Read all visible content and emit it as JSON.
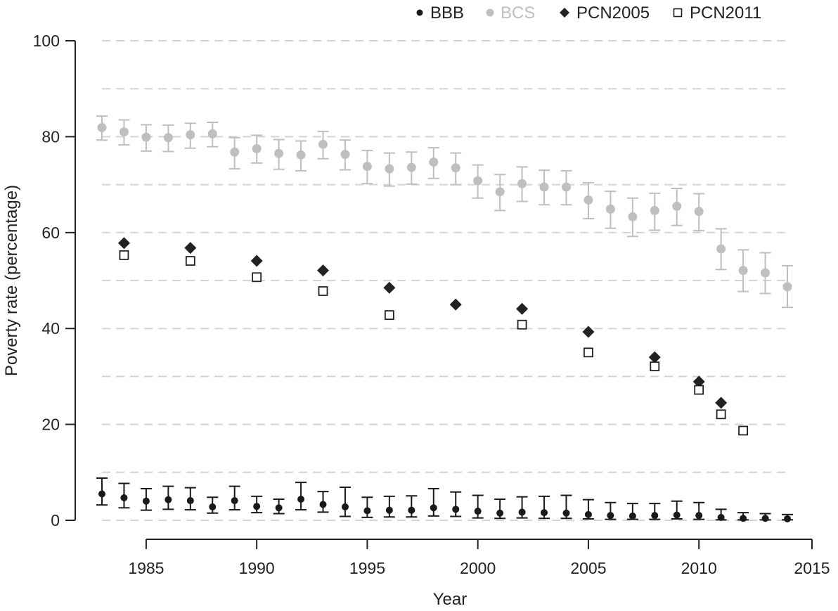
{
  "chart_data": {
    "type": "scatter",
    "xlabel": "Year",
    "ylabel": "Poverty rate (percentage)",
    "xlim": [
      1983,
      2015
    ],
    "ylim": [
      0,
      100
    ],
    "x_ticks": [
      1985,
      1990,
      1995,
      2000,
      2005,
      2010,
      2015
    ],
    "y_ticks": [
      0,
      20,
      40,
      60,
      80,
      100
    ],
    "grid": "horizontal dashed every 10",
    "legend_position": "top",
    "series": [
      {
        "name": "BBB",
        "color": "#1a1a1a",
        "marker": "circle-small",
        "error_bars": true,
        "points": [
          {
            "x": 1983,
            "y": 5.5,
            "lo": 3.2,
            "hi": 8.8
          },
          {
            "x": 1984,
            "y": 4.7,
            "lo": 2.6,
            "hi": 7.7
          },
          {
            "x": 1985,
            "y": 4.0,
            "lo": 2.1,
            "hi": 6.6
          },
          {
            "x": 1986,
            "y": 4.3,
            "lo": 2.3,
            "hi": 7.1
          },
          {
            "x": 1987,
            "y": 4.1,
            "lo": 2.2,
            "hi": 6.8
          },
          {
            "x": 1988,
            "y": 2.8,
            "lo": 1.5,
            "hi": 4.8
          },
          {
            "x": 1989,
            "y": 4.1,
            "lo": 2.2,
            "hi": 7.1
          },
          {
            "x": 1990,
            "y": 2.9,
            "lo": 1.6,
            "hi": 5.0
          },
          {
            "x": 1991,
            "y": 2.6,
            "lo": 1.4,
            "hi": 4.4
          },
          {
            "x": 1992,
            "y": 4.4,
            "lo": 2.2,
            "hi": 7.9
          },
          {
            "x": 1993,
            "y": 3.3,
            "lo": 1.7,
            "hi": 6.0
          },
          {
            "x": 1994,
            "y": 2.8,
            "lo": 0.8,
            "hi": 6.9
          },
          {
            "x": 1995,
            "y": 2.0,
            "lo": 0.6,
            "hi": 4.8
          },
          {
            "x": 1996,
            "y": 2.1,
            "lo": 0.7,
            "hi": 5.0
          },
          {
            "x": 1997,
            "y": 2.1,
            "lo": 0.7,
            "hi": 5.1
          },
          {
            "x": 1998,
            "y": 2.6,
            "lo": 0.9,
            "hi": 6.6
          },
          {
            "x": 1999,
            "y": 2.3,
            "lo": 0.8,
            "hi": 5.9
          },
          {
            "x": 2000,
            "y": 1.9,
            "lo": 0.5,
            "hi": 5.2
          },
          {
            "x": 2001,
            "y": 1.5,
            "lo": 0.4,
            "hi": 4.4
          },
          {
            "x": 2002,
            "y": 1.7,
            "lo": 0.5,
            "hi": 4.9
          },
          {
            "x": 2003,
            "y": 1.6,
            "lo": 0.4,
            "hi": 5.0
          },
          {
            "x": 2004,
            "y": 1.5,
            "lo": 0.4,
            "hi": 5.2
          },
          {
            "x": 2005,
            "y": 1.2,
            "lo": 0.3,
            "hi": 4.3
          },
          {
            "x": 2006,
            "y": 1.0,
            "lo": 0.2,
            "hi": 3.7
          },
          {
            "x": 2007,
            "y": 0.9,
            "lo": 0.2,
            "hi": 3.5
          },
          {
            "x": 2008,
            "y": 1.0,
            "lo": 0.2,
            "hi": 3.5
          },
          {
            "x": 2009,
            "y": 1.1,
            "lo": 0.3,
            "hi": 4.0
          },
          {
            "x": 2010,
            "y": 1.0,
            "lo": 0.2,
            "hi": 3.7
          },
          {
            "x": 2011,
            "y": 0.6,
            "lo": 0.1,
            "hi": 2.3
          },
          {
            "x": 2012,
            "y": 0.4,
            "lo": 0.1,
            "hi": 1.6
          },
          {
            "x": 2013,
            "y": 0.4,
            "lo": 0.1,
            "hi": 1.4
          },
          {
            "x": 2014,
            "y": 0.3,
            "lo": 0.1,
            "hi": 1.2
          }
        ]
      },
      {
        "name": "BCS",
        "color": "#bfbfbf",
        "marker": "circle",
        "error_bars": true,
        "points": [
          {
            "x": 1983,
            "y": 81.9,
            "lo": 79.3,
            "hi": 84.3
          },
          {
            "x": 1984,
            "y": 81.0,
            "lo": 78.3,
            "hi": 83.5
          },
          {
            "x": 1985,
            "y": 79.9,
            "lo": 77.0,
            "hi": 82.5
          },
          {
            "x": 1986,
            "y": 79.8,
            "lo": 76.9,
            "hi": 82.4
          },
          {
            "x": 1987,
            "y": 80.4,
            "lo": 77.6,
            "hi": 82.8
          },
          {
            "x": 1988,
            "y": 80.6,
            "lo": 77.9,
            "hi": 83.0
          },
          {
            "x": 1989,
            "y": 76.8,
            "lo": 73.3,
            "hi": 79.8
          },
          {
            "x": 1990,
            "y": 77.5,
            "lo": 74.5,
            "hi": 80.3
          },
          {
            "x": 1991,
            "y": 76.5,
            "lo": 73.2,
            "hi": 79.4
          },
          {
            "x": 1992,
            "y": 76.2,
            "lo": 72.9,
            "hi": 79.1
          },
          {
            "x": 1993,
            "y": 78.4,
            "lo": 75.4,
            "hi": 81.1
          },
          {
            "x": 1994,
            "y": 76.3,
            "lo": 73.1,
            "hi": 79.3
          },
          {
            "x": 1995,
            "y": 73.8,
            "lo": 70.2,
            "hi": 77.1
          },
          {
            "x": 1996,
            "y": 73.3,
            "lo": 69.7,
            "hi": 76.6
          },
          {
            "x": 1997,
            "y": 73.6,
            "lo": 70.1,
            "hi": 76.8
          },
          {
            "x": 1998,
            "y": 74.7,
            "lo": 71.3,
            "hi": 77.7
          },
          {
            "x": 1999,
            "y": 73.5,
            "lo": 70.0,
            "hi": 76.6
          },
          {
            "x": 2000,
            "y": 70.8,
            "lo": 67.2,
            "hi": 74.1
          },
          {
            "x": 2001,
            "y": 68.5,
            "lo": 64.6,
            "hi": 72.1
          },
          {
            "x": 2002,
            "y": 70.2,
            "lo": 66.5,
            "hi": 73.7
          },
          {
            "x": 2003,
            "y": 69.5,
            "lo": 65.8,
            "hi": 73.0
          },
          {
            "x": 2004,
            "y": 69.5,
            "lo": 65.8,
            "hi": 72.9
          },
          {
            "x": 2005,
            "y": 66.8,
            "lo": 62.9,
            "hi": 70.4
          },
          {
            "x": 2006,
            "y": 64.9,
            "lo": 60.9,
            "hi": 68.6
          },
          {
            "x": 2007,
            "y": 63.3,
            "lo": 59.2,
            "hi": 67.2
          },
          {
            "x": 2008,
            "y": 64.6,
            "lo": 60.5,
            "hi": 68.2
          },
          {
            "x": 2009,
            "y": 65.5,
            "lo": 61.5,
            "hi": 69.2
          },
          {
            "x": 2010,
            "y": 64.4,
            "lo": 60.4,
            "hi": 68.1
          },
          {
            "x": 2011,
            "y": 56.6,
            "lo": 52.3,
            "hi": 60.8
          },
          {
            "x": 2012,
            "y": 52.1,
            "lo": 47.7,
            "hi": 56.4
          },
          {
            "x": 2013,
            "y": 51.6,
            "lo": 47.3,
            "hi": 55.8
          },
          {
            "x": 2014,
            "y": 48.7,
            "lo": 44.4,
            "hi": 53.1
          }
        ]
      },
      {
        "name": "PCN2005",
        "color": "#222222",
        "marker": "diamond",
        "error_bars": false,
        "points": [
          {
            "x": 1984,
            "y": 57.8
          },
          {
            "x": 1987,
            "y": 56.8
          },
          {
            "x": 1990,
            "y": 54.1
          },
          {
            "x": 1993,
            "y": 52.1
          },
          {
            "x": 1996,
            "y": 48.5
          },
          {
            "x": 1999,
            "y": 45.0
          },
          {
            "x": 2002,
            "y": 44.1
          },
          {
            "x": 2005,
            "y": 39.3
          },
          {
            "x": 2008,
            "y": 34.0
          },
          {
            "x": 2010,
            "y": 28.9
          },
          {
            "x": 2011,
            "y": 24.5
          }
        ]
      },
      {
        "name": "PCN2011",
        "color": "#222222",
        "marker": "open-square",
        "error_bars": false,
        "points": [
          {
            "x": 1984,
            "y": 55.3
          },
          {
            "x": 1987,
            "y": 54.1
          },
          {
            "x": 1990,
            "y": 50.7
          },
          {
            "x": 1993,
            "y": 47.8
          },
          {
            "x": 1996,
            "y": 42.8
          },
          {
            "x": 2002,
            "y": 40.8
          },
          {
            "x": 2005,
            "y": 35.0
          },
          {
            "x": 2008,
            "y": 32.1
          },
          {
            "x": 2010,
            "y": 27.2
          },
          {
            "x": 2011,
            "y": 22.1
          },
          {
            "x": 2012,
            "y": 18.7
          }
        ]
      }
    ]
  }
}
